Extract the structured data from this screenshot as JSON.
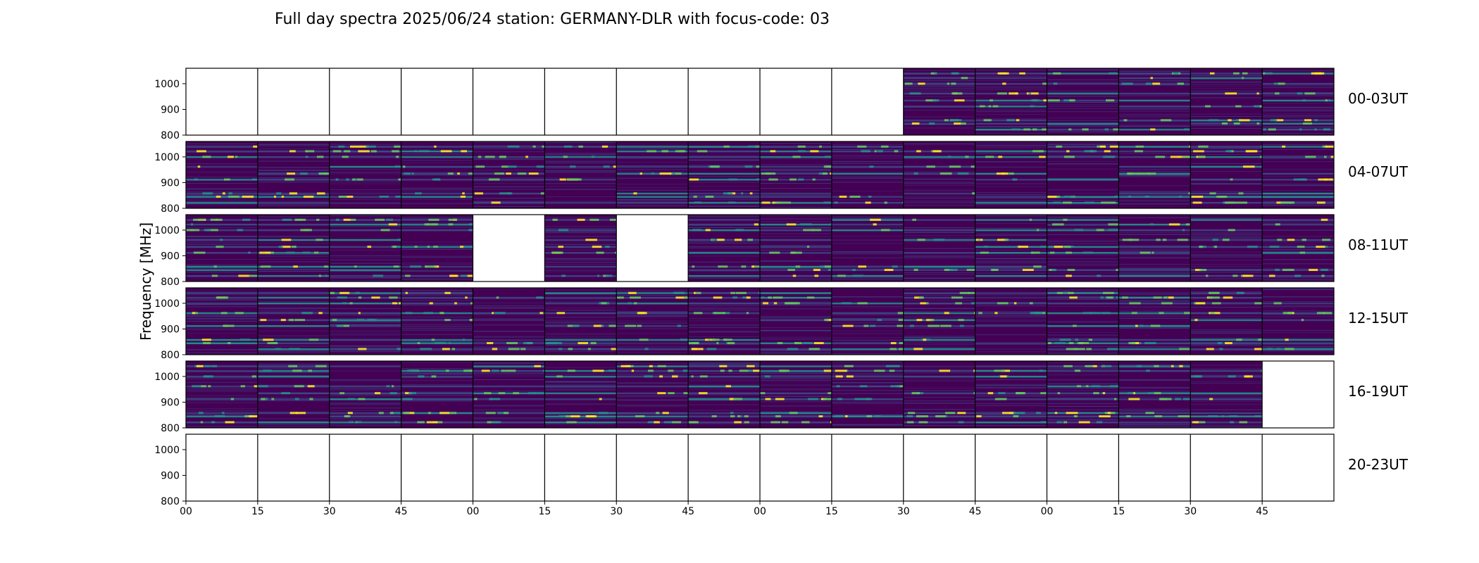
{
  "chart_data": {
    "type": "heatmap",
    "title": "Full day spectra 2025/06/24 station: GERMANY-DLR with focus-code: 03",
    "ylabel": "Frequency [MHz]",
    "xlabel": "",
    "yticks": [
      "1000",
      "900",
      "800"
    ],
    "ytick_values": [
      1000,
      900,
      800
    ],
    "ylim": [
      800,
      1060
    ],
    "xticks": [
      "00",
      "15",
      "30",
      "45",
      "00",
      "15",
      "30",
      "45",
      "00",
      "15",
      "30",
      "45",
      "00",
      "15",
      "30",
      "45"
    ],
    "panels_per_row": 16,
    "minutes_per_panel": 15,
    "colormap": [
      "#440154",
      "#3b528b",
      "#21918c",
      "#5ec962",
      "#fde725"
    ],
    "rows": [
      {
        "label": "00-03UT",
        "available": [
          0,
          0,
          0,
          0,
          0,
          0,
          0,
          0,
          0,
          0,
          1,
          1,
          1,
          1,
          1,
          1
        ]
      },
      {
        "label": "04-07UT",
        "available": [
          1,
          1,
          1,
          1,
          1,
          1,
          1,
          1,
          1,
          1,
          1,
          1,
          1,
          1,
          1,
          1
        ]
      },
      {
        "label": "08-11UT",
        "available": [
          1,
          1,
          1,
          1,
          0,
          1,
          0,
          1,
          1,
          1,
          1,
          1,
          1,
          1,
          1,
          1
        ]
      },
      {
        "label": "12-15UT",
        "available": [
          1,
          1,
          1,
          1,
          1,
          1,
          1,
          1,
          1,
          1,
          1,
          1,
          1,
          1,
          1,
          1
        ]
      },
      {
        "label": "16-19UT",
        "available": [
          1,
          1,
          1,
          1,
          1,
          1,
          1,
          1,
          1,
          1,
          1,
          1,
          1,
          1,
          1,
          0
        ]
      },
      {
        "label": "20-23UT",
        "available": [
          0,
          0,
          0,
          0,
          0,
          0,
          0,
          0,
          0,
          0,
          0,
          0,
          0,
          0,
          0,
          0
        ]
      }
    ]
  }
}
